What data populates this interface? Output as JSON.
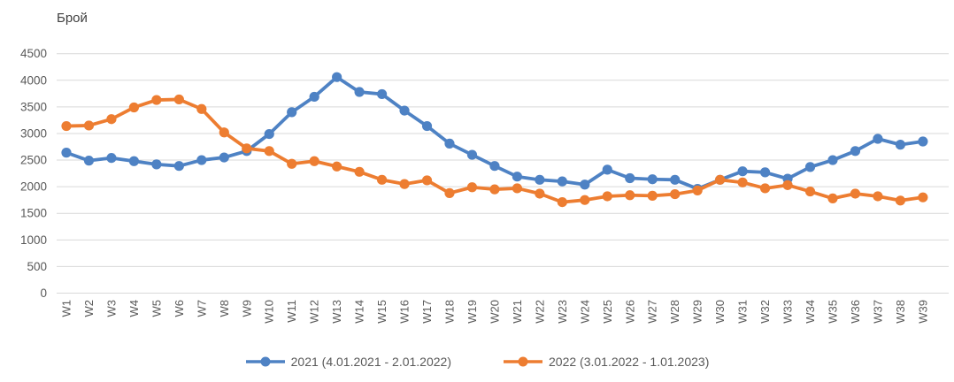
{
  "chart": {
    "title": "Брой",
    "colors": {
      "series_2021": "#4e82c4",
      "series_2022": "#ed7d31",
      "gridline": "#d9d9d9",
      "axis_text": "#595959",
      "title_text": "#404040",
      "background": "#ffffff"
    }
  },
  "chart_data": {
    "type": "line",
    "title": "Брой",
    "xlabel": "",
    "ylabel": "Брой",
    "ylim": [
      0,
      4500
    ],
    "y_tick_step": 500,
    "grid": true,
    "legend_position": "bottom",
    "categories": [
      "W1",
      "W2",
      "W3",
      "W4",
      "W5",
      "W6",
      "W7",
      "W8",
      "W9",
      "W10",
      "W11",
      "W12",
      "W13",
      "W14",
      "W15",
      "W16",
      "W17",
      "W18",
      "W19",
      "W20",
      "W21",
      "W22",
      "W23",
      "W24",
      "W25",
      "W26",
      "W27",
      "W28",
      "W29",
      "W30",
      "W31",
      "W32",
      "W33",
      "W34",
      "W35",
      "W36",
      "W37",
      "W38",
      "W39"
    ],
    "series": [
      {
        "name": "2021 (4.01.2021 - 2.01.2022)",
        "color": "#4e82c4",
        "values": [
          2640,
          2490,
          2540,
          2480,
          2420,
          2390,
          2500,
          2550,
          2670,
          2990,
          3400,
          3690,
          4060,
          3780,
          3740,
          3430,
          3140,
          2810,
          2600,
          2390,
          2190,
          2130,
          2100,
          2040,
          2320,
          2160,
          2140,
          2130,
          1960,
          2130,
          2290,
          2270,
          2150,
          2370,
          2500,
          2670,
          2900,
          2790,
          2850
        ]
      },
      {
        "name": "2022 (3.01.2022 - 1.01.2023)",
        "color": "#ed7d31",
        "values": [
          3140,
          3150,
          3270,
          3490,
          3630,
          3640,
          3460,
          3020,
          2720,
          2670,
          2430,
          2480,
          2380,
          2280,
          2130,
          2050,
          2120,
          1880,
          1990,
          1950,
          1970,
          1870,
          1710,
          1750,
          1820,
          1840,
          1830,
          1860,
          1930,
          2130,
          2080,
          1970,
          2030,
          1910,
          1780,
          1870,
          1820,
          1740,
          1800
        ]
      }
    ]
  }
}
